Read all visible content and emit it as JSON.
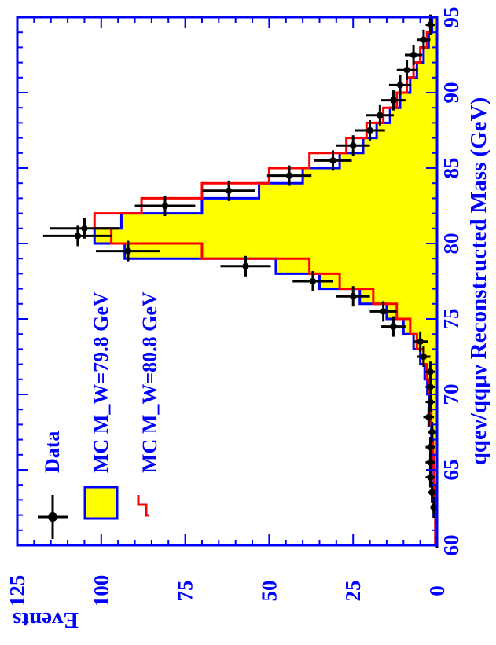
{
  "chart_data": {
    "type": "histogram",
    "xlabel": "qqeν/qqμν Reconstructed Mass (GeV)",
    "ylabel": "Events",
    "xlim": [
      60,
      95
    ],
    "ylim": [
      0,
      125
    ],
    "x_ticks": [
      "60",
      "65",
      "70",
      "75",
      "80",
      "85",
      "90",
      "95"
    ],
    "y_ticks": [
      "0",
      "25",
      "50",
      "75",
      "100",
      "125"
    ],
    "legend": {
      "placement": "top-left",
      "entries": [
        {
          "label": "Data",
          "style": "points"
        },
        {
          "label": "MC M_W=79.8 GeV",
          "style": "filled-histogram"
        },
        {
          "label": "MC M_W=80.8 GeV",
          "style": "line-histogram"
        }
      ]
    },
    "bin_edges": [
      60,
      61,
      62,
      63,
      64,
      65,
      66,
      67,
      68,
      69,
      70,
      71,
      72,
      73,
      74,
      75,
      76,
      77,
      78,
      79,
      80,
      81,
      82,
      83,
      84,
      85,
      86,
      87,
      88,
      89,
      90,
      91,
      92,
      93,
      94,
      95
    ],
    "series": [
      {
        "name": "MC M_W=79.8 GeV",
        "fill": "#ffff00",
        "stroke": "#0000ff",
        "values": [
          0.5,
          0.5,
          0.7,
          0.8,
          1.0,
          1.2,
          1.4,
          1.7,
          2.0,
          2.4,
          2.9,
          3.7,
          5,
          7,
          10,
          15,
          23,
          35,
          48,
          93,
          102,
          94,
          70,
          53,
          40,
          29,
          22,
          18,
          14,
          11,
          8,
          6,
          4,
          2.5,
          1.5
        ]
      },
      {
        "name": "MC M_W=80.8 GeV",
        "stroke": "#ff0000",
        "values": [
          0.5,
          0.5,
          0.6,
          0.7,
          0.9,
          1.0,
          1.2,
          1.4,
          1.7,
          2.0,
          2.4,
          3.0,
          4,
          6,
          8,
          12,
          19,
          29,
          38,
          70,
          97,
          102,
          88,
          70,
          50,
          38,
          27,
          21,
          16,
          12,
          9,
          7,
          5,
          3,
          1.8
        ]
      },
      {
        "name": "Data",
        "color": "#000000",
        "points": [
          {
            "x": 60.5,
            "y": 0,
            "err": 0.5
          },
          {
            "x": 61.5,
            "y": 0,
            "err": 0.5
          },
          {
            "x": 62.5,
            "y": 1,
            "err": 1
          },
          {
            "x": 63.5,
            "y": 1.5,
            "err": 1.2
          },
          {
            "x": 64.5,
            "y": 2,
            "err": 1.4
          },
          {
            "x": 65.5,
            "y": 2,
            "err": 1.4
          },
          {
            "x": 66.5,
            "y": 2,
            "err": 1.4
          },
          {
            "x": 67.5,
            "y": 1.5,
            "err": 1.2
          },
          {
            "x": 68.5,
            "y": 2.5,
            "err": 1.6
          },
          {
            "x": 69.5,
            "y": 2,
            "err": 1.4
          },
          {
            "x": 70.5,
            "y": 2,
            "err": 1.4
          },
          {
            "x": 71.5,
            "y": 2,
            "err": 1.4
          },
          {
            "x": 72.5,
            "y": 4,
            "err": 2
          },
          {
            "x": 73.5,
            "y": 5,
            "err": 2.2
          },
          {
            "x": 74.5,
            "y": 13,
            "err": 3.6
          },
          {
            "x": 75.5,
            "y": 16,
            "err": 4
          },
          {
            "x": 76.5,
            "y": 25,
            "err": 5
          },
          {
            "x": 77.5,
            "y": 37,
            "err": 6
          },
          {
            "x": 78.5,
            "y": 57,
            "err": 7.5
          },
          {
            "x": 79.5,
            "y": 92,
            "err": 9.6
          },
          {
            "x": 80.5,
            "y": 107,
            "err": 10.3
          },
          {
            "x": 81,
            "y": 105,
            "err": 10.2
          },
          {
            "x": 82.5,
            "y": 81,
            "err": 9
          },
          {
            "x": 83.5,
            "y": 62,
            "err": 7.9
          },
          {
            "x": 84.5,
            "y": 44,
            "err": 6.6
          },
          {
            "x": 85.5,
            "y": 31,
            "err": 5.6
          },
          {
            "x": 86.5,
            "y": 25,
            "err": 5
          },
          {
            "x": 87.5,
            "y": 20,
            "err": 4.5
          },
          {
            "x": 88.5,
            "y": 17,
            "err": 4.1
          },
          {
            "x": 89.5,
            "y": 13,
            "err": 3.6
          },
          {
            "x": 90.5,
            "y": 11,
            "err": 3.3
          },
          {
            "x": 91.5,
            "y": 9,
            "err": 3
          },
          {
            "x": 92.5,
            "y": 7,
            "err": 2.6
          },
          {
            "x": 93.5,
            "y": 4,
            "err": 2
          },
          {
            "x": 94.5,
            "y": 2,
            "err": 1.4
          }
        ]
      }
    ],
    "colors": {
      "axis": "#0000ff",
      "text": "#0000ff",
      "mc1_fill": "#ffff00",
      "mc1_line": "#0000ff",
      "mc2_line": "#ff0000",
      "data": "#000000"
    }
  }
}
